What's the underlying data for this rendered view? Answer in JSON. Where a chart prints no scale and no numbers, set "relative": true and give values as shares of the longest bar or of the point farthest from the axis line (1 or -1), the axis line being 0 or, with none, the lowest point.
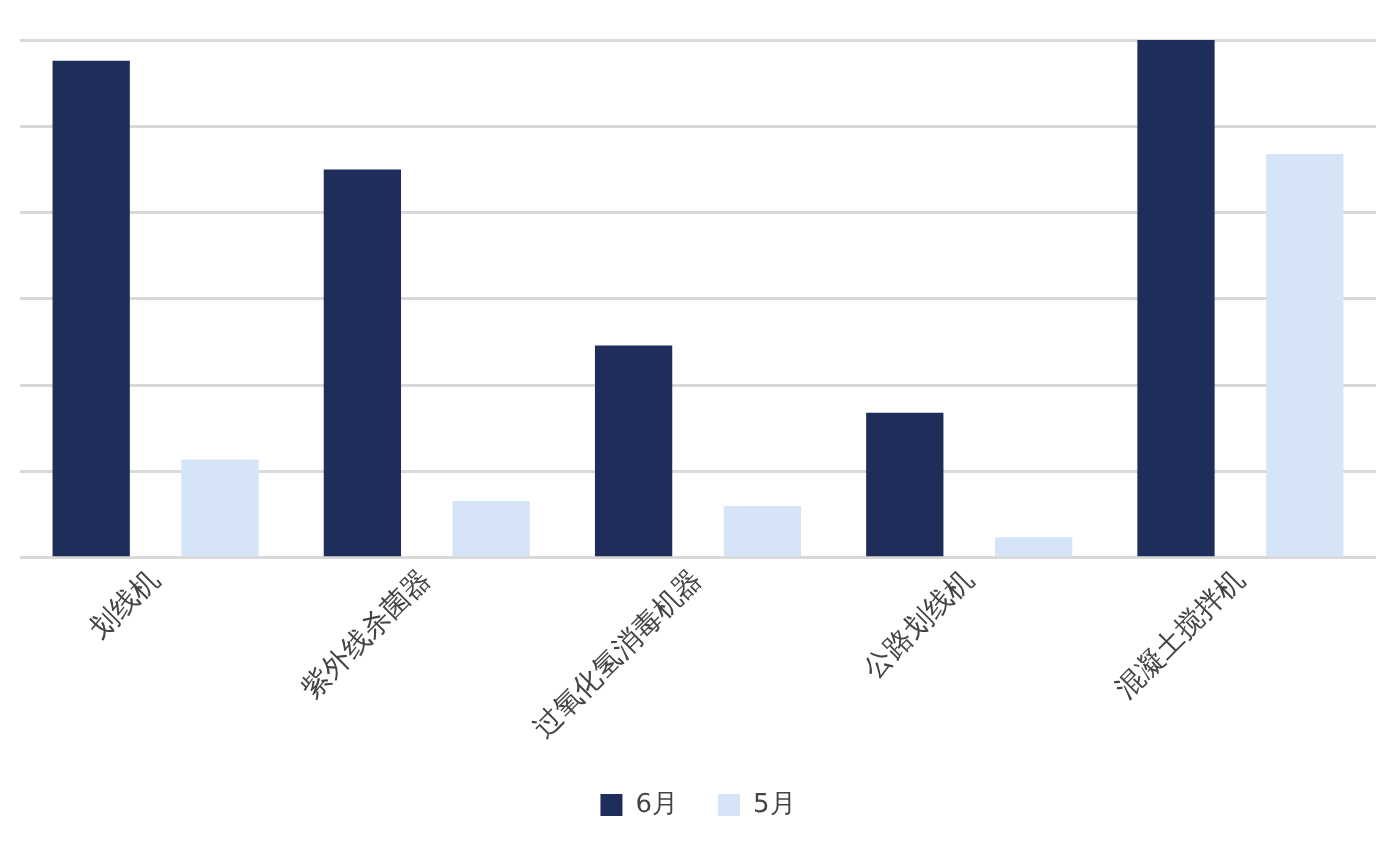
{
  "chart_data": {
    "type": "bar",
    "relative": true,
    "grid": "y",
    "legend": "bottom",
    "categories": [
      "划线机",
      "紫外线杀菌器",
      "过氧化氢消毒机器",
      "公路划线机",
      "混凝土搅拌机"
    ],
    "series": [
      {
        "name": "6月",
        "color": "#1f2d5a",
        "values": [
          0.96,
          0.75,
          0.41,
          0.28,
          1
        ]
      },
      {
        "name": "5月",
        "color": "#d6e4f7",
        "values": [
          0.19,
          0.11,
          0.1,
          0.04,
          0.78
        ]
      }
    ]
  }
}
